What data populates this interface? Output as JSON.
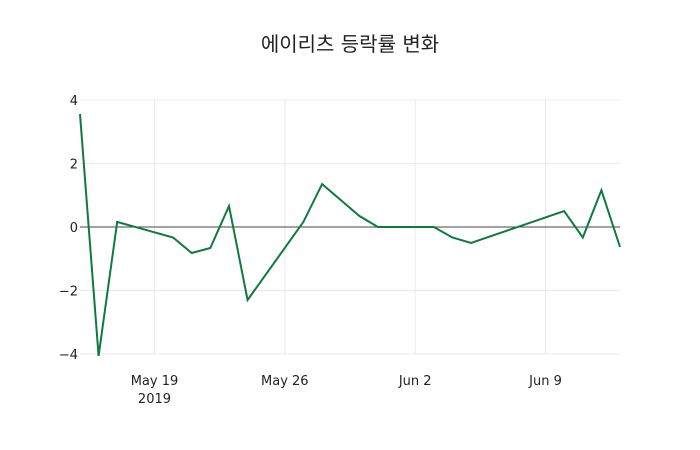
{
  "chart_data": {
    "type": "line",
    "title": "에이리츠 등락률 변화",
    "xlabel": "",
    "ylabel": "",
    "ylim": [
      -4,
      4
    ],
    "yticks": [
      "4",
      "2",
      "0",
      "−2",
      "−4"
    ],
    "xticks": [
      {
        "label": "May 19",
        "sublabel": "2019"
      },
      {
        "label": "May 26",
        "sublabel": ""
      },
      {
        "label": "Jun 2",
        "sublabel": ""
      },
      {
        "label": "Jun 9",
        "sublabel": ""
      }
    ],
    "grid": true,
    "line_color": "#0f7a3f",
    "series": [
      {
        "name": "등락률",
        "x": [
          "2019-05-15",
          "2019-05-16",
          "2019-05-17",
          "2019-05-20",
          "2019-05-21",
          "2019-05-22",
          "2019-05-23",
          "2019-05-24",
          "2019-05-27",
          "2019-05-28",
          "2019-05-29",
          "2019-05-30",
          "2019-05-31",
          "2019-06-03",
          "2019-06-04",
          "2019-06-05",
          "2019-06-07",
          "2019-06-10",
          "2019-06-11",
          "2019-06-12",
          "2019-06-13"
        ],
        "values": [
          3.56,
          -4.06,
          0.16,
          -0.33,
          -0.82,
          -0.66,
          0.66,
          -2.3,
          0.16,
          1.35,
          0.85,
          0.35,
          0.0,
          0.0,
          -0.33,
          -0.5,
          -0.1,
          0.5,
          -0.33,
          1.16,
          -0.63
        ]
      }
    ]
  }
}
